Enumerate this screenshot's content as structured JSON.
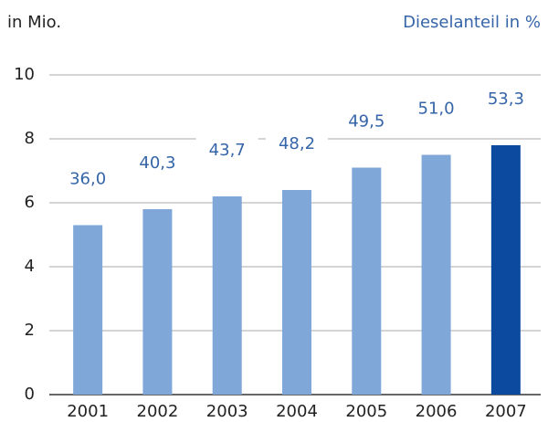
{
  "chart_data": {
    "type": "bar",
    "title": "in Mio.",
    "subtitle": "Dieselanteil in %",
    "categories": [
      "2001",
      "2002",
      "2003",
      "2004",
      "2005",
      "2006",
      "2007"
    ],
    "values": [
      5.3,
      5.8,
      6.2,
      6.4,
      7.1,
      7.5,
      7.8
    ],
    "colors": [
      "#7fa8d8",
      "#7fa8d8",
      "#7fa8d8",
      "#7fa8d8",
      "#7fa8d8",
      "#7fa8d8",
      "#0b4a9f"
    ],
    "annotations": [
      "36,0",
      "40,3",
      "43,7",
      "48,2",
      "49,5",
      "51,0",
      "53,3"
    ],
    "ylim": [
      0,
      10
    ],
    "yticks": [
      0,
      2,
      4,
      6,
      8,
      10
    ],
    "grid": true
  }
}
